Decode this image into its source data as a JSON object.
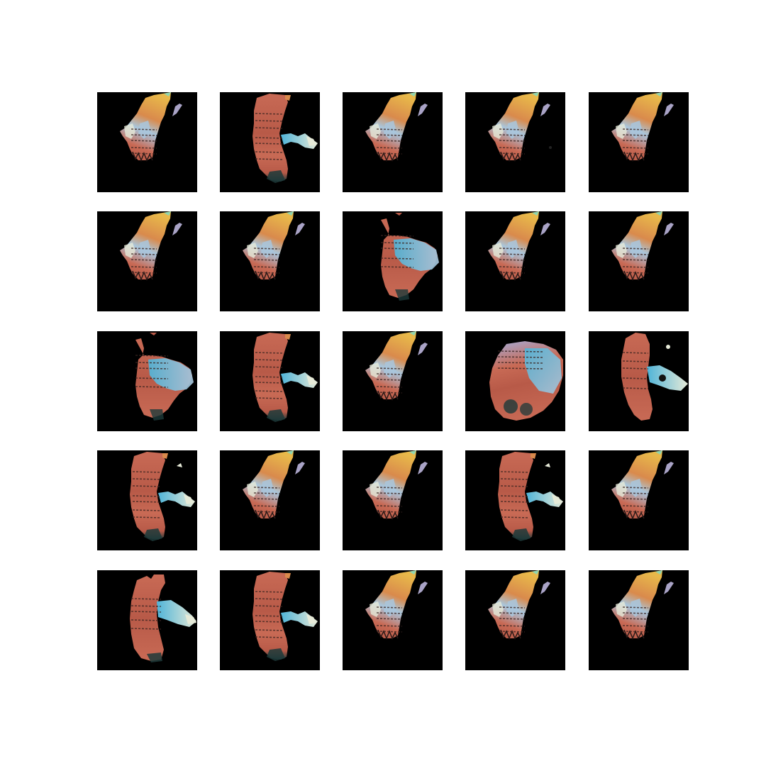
{
  "figure": {
    "background": "#ffffff",
    "panel_background": "#000000",
    "rows": 5,
    "columns": 5
  },
  "palette": {
    "yellow": "#e8b84a",
    "orange": "#d98a4c",
    "salmon": "#c86a55",
    "rust": "#b85a48",
    "cyan": "#4fb4d8",
    "lightblue": "#a9c6dc",
    "lavender": "#a9a3c6",
    "pale": "#e6ead8",
    "darkteal": "#1d3a3a"
  },
  "tiles": [
    {
      "variant": "A"
    },
    {
      "variant": "B"
    },
    {
      "variant": "A"
    },
    {
      "variant": "A2"
    },
    {
      "variant": "A"
    },
    {
      "variant": "A"
    },
    {
      "variant": "A"
    },
    {
      "variant": "C"
    },
    {
      "variant": "A"
    },
    {
      "variant": "A"
    },
    {
      "variant": "C2"
    },
    {
      "variant": "B"
    },
    {
      "variant": "A"
    },
    {
      "variant": "D"
    },
    {
      "variant": "E"
    },
    {
      "variant": "B2"
    },
    {
      "variant": "A"
    },
    {
      "variant": "A"
    },
    {
      "variant": "B2"
    },
    {
      "variant": "A"
    },
    {
      "variant": "F"
    },
    {
      "variant": "B"
    },
    {
      "variant": "A"
    },
    {
      "variant": "A"
    },
    {
      "variant": "A"
    }
  ]
}
